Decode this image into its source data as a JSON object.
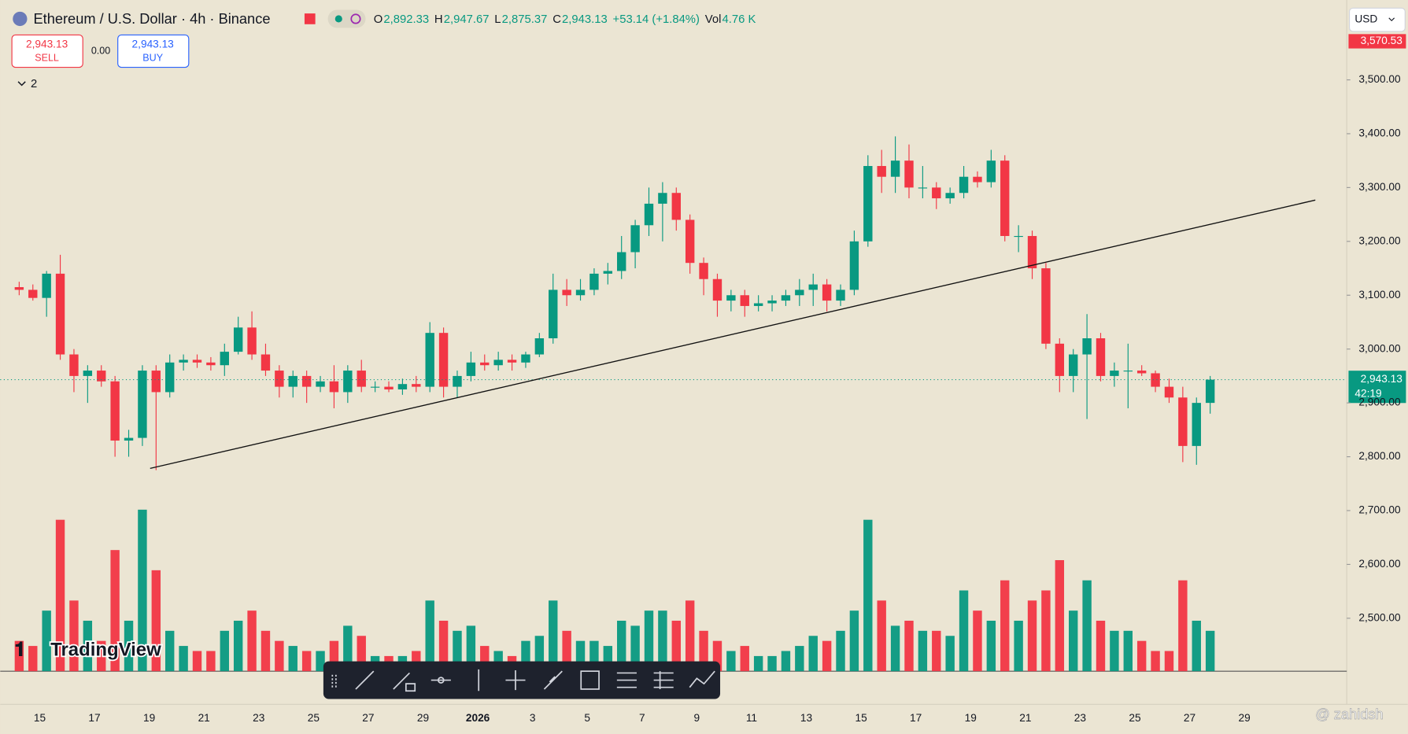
{
  "header": {
    "symbol": "Ethereum / U.S. Dollar · 4h · Binance",
    "ohlc": [
      {
        "key": "O",
        "value": "2,892.33"
      },
      {
        "key": "H",
        "value": "2,947.67"
      },
      {
        "key": "L",
        "value": "2,875.37"
      },
      {
        "key": "C",
        "value": "2,943.13"
      }
    ],
    "change": "+53.14 (+1.84%)",
    "vol_key": "Vol",
    "vol": "4.76 K"
  },
  "trade": {
    "sell_price": "2,943.13",
    "sell": "SELL",
    "spread": "0.00",
    "buy_price": "2,943.13",
    "buy": "BUY"
  },
  "indicators_toggle": "2",
  "currency": "USD",
  "high_marker": "3,570.53",
  "price_label": "2,943.13",
  "countdown": "42:19",
  "logo": "TradingView",
  "watermark": "@ zahidsh",
  "chart_data": {
    "type": "candlestick",
    "up_color": "#089981",
    "down_color": "#f23645",
    "ylim": [
      2400,
      3645
    ],
    "yticks": [
      {
        "value": 2500,
        "label": "2,500.00"
      },
      {
        "value": 2600,
        "label": "2,600.00"
      },
      {
        "value": 2700,
        "label": "2,700.00"
      },
      {
        "value": 2800,
        "label": "2,800.00"
      },
      {
        "value": 2900,
        "label": "2,900.00"
      },
      {
        "value": 3000,
        "label": "3,000.00"
      },
      {
        "value": 3100,
        "label": "3,100.00"
      },
      {
        "value": 3200,
        "label": "3,200.00"
      },
      {
        "value": 3300,
        "label": "3,300.00"
      },
      {
        "value": 3400,
        "label": "3,400.00"
      },
      {
        "value": 3500,
        "label": "3,500.00"
      }
    ],
    "x_labels": [
      "15",
      "17",
      "19",
      "21",
      "23",
      "25",
      "27",
      "29",
      "2026",
      "3",
      "5",
      "7",
      "9",
      "11",
      "13",
      "15",
      "17",
      "19",
      "21",
      "23",
      "25",
      "27",
      "29"
    ],
    "open": [
      3115,
      3110,
      3095,
      3140,
      2990,
      2950,
      2960,
      2940,
      2830,
      2835,
      2960,
      2920,
      2975,
      2980,
      2975,
      2970,
      2995,
      3040,
      2990,
      2960,
      2930,
      2950,
      2930,
      2940,
      2920,
      2960,
      2930,
      2930,
      2925,
      2935,
      2930,
      3030,
      2930,
      2950,
      2975,
      2970,
      2980,
      2975,
      2990,
      3020,
      3110,
      3100,
      3110,
      3140,
      3145,
      3180,
      3230,
      3270,
      3290,
      3240,
      3160,
      3130,
      3090,
      3100,
      3080,
      3085,
      3090,
      3100,
      3110,
      3120,
      3090,
      3110,
      3200,
      3340,
      3320,
      3350,
      3300,
      3300,
      3280,
      3290,
      3320,
      3310,
      3350,
      3210,
      3210,
      3150,
      3010,
      2950,
      2990,
      3020,
      2950,
      2960,
      2960,
      2955,
      2930,
      2910,
      2820,
      2900
    ],
    "high": [
      3125,
      3120,
      3145,
      3175,
      3000,
      2970,
      2970,
      2950,
      2850,
      2970,
      2970,
      2990,
      2990,
      2990,
      2985,
      3010,
      3060,
      3070,
      3010,
      2970,
      2960,
      2960,
      2950,
      2970,
      2970,
      2980,
      2940,
      2940,
      2945,
      2950,
      3050,
      3040,
      2960,
      2995,
      2990,
      2995,
      2990,
      2995,
      3030,
      3140,
      3130,
      3130,
      3150,
      3160,
      3210,
      3240,
      3300,
      3310,
      3300,
      3250,
      3170,
      3140,
      3110,
      3110,
      3100,
      3100,
      3110,
      3130,
      3140,
      3130,
      3120,
      3220,
      3360,
      3370,
      3395,
      3380,
      3340,
      3310,
      3300,
      3340,
      3330,
      3370,
      3360,
      3230,
      3220,
      3160,
      3020,
      3000,
      3065,
      3030,
      2975,
      3010,
      2970,
      2960,
      2945,
      2930,
      2910,
      2950
    ],
    "low": [
      3100,
      3090,
      3060,
      2980,
      2920,
      2900,
      2930,
      2800,
      2800,
      2820,
      2775,
      2910,
      2960,
      2965,
      2960,
      2950,
      2990,
      2980,
      2950,
      2910,
      2910,
      2900,
      2920,
      2890,
      2900,
      2920,
      2920,
      2920,
      2915,
      2920,
      2920,
      2910,
      2910,
      2940,
      2960,
      2960,
      2960,
      2965,
      2985,
      3010,
      3080,
      3090,
      3100,
      3120,
      3130,
      3150,
      3210,
      3200,
      3220,
      3140,
      3100,
      3060,
      3070,
      3060,
      3070,
      3070,
      3080,
      3080,
      3080,
      3070,
      3080,
      3100,
      3190,
      3290,
      3290,
      3280,
      3280,
      3260,
      3270,
      3280,
      3300,
      3300,
      3200,
      3180,
      3130,
      3000,
      2920,
      2920,
      2870,
      2940,
      2930,
      2890,
      2950,
      2920,
      2900,
      2790,
      2785,
      2880
    ],
    "close": [
      3110,
      3095,
      3140,
      2990,
      2950,
      2960,
      2940,
      2830,
      2835,
      2960,
      2920,
      2975,
      2980,
      2975,
      2970,
      2995,
      3040,
      2990,
      2960,
      2930,
      2950,
      2930,
      2940,
      2920,
      2960,
      2930,
      2930,
      2925,
      2935,
      2930,
      3030,
      2930,
      2950,
      2975,
      2970,
      2980,
      2975,
      2990,
      3020,
      3110,
      3100,
      3110,
      3140,
      3145,
      3180,
      3230,
      3270,
      3290,
      3240,
      3160,
      3130,
      3090,
      3100,
      3080,
      3085,
      3090,
      3100,
      3110,
      3120,
      3090,
      3110,
      3200,
      3340,
      3320,
      3350,
      3300,
      3300,
      3280,
      3290,
      3320,
      3310,
      3350,
      3210,
      3210,
      3150,
      3010,
      2950,
      2990,
      3020,
      2950,
      2960,
      2960,
      2955,
      2930,
      2910,
      2820,
      2900,
      2943.13
    ],
    "volume": [
      6,
      5,
      12,
      30,
      14,
      10,
      6,
      24,
      10,
      32,
      20,
      8,
      5,
      4,
      4,
      8,
      10,
      12,
      8,
      6,
      5,
      4,
      4,
      6,
      9,
      7,
      3,
      3,
      3,
      4,
      14,
      10,
      8,
      9,
      5,
      4,
      3,
      6,
      7,
      14,
      8,
      6,
      6,
      5,
      10,
      9,
      12,
      12,
      10,
      14,
      8,
      6,
      4,
      5,
      3,
      3,
      4,
      5,
      7,
      6,
      8,
      12,
      30,
      14,
      9,
      10,
      8,
      8,
      7,
      16,
      12,
      10,
      18,
      10,
      14,
      16,
      22,
      12,
      18,
      10,
      8,
      8,
      6,
      4,
      4,
      18,
      10,
      8
    ]
  }
}
